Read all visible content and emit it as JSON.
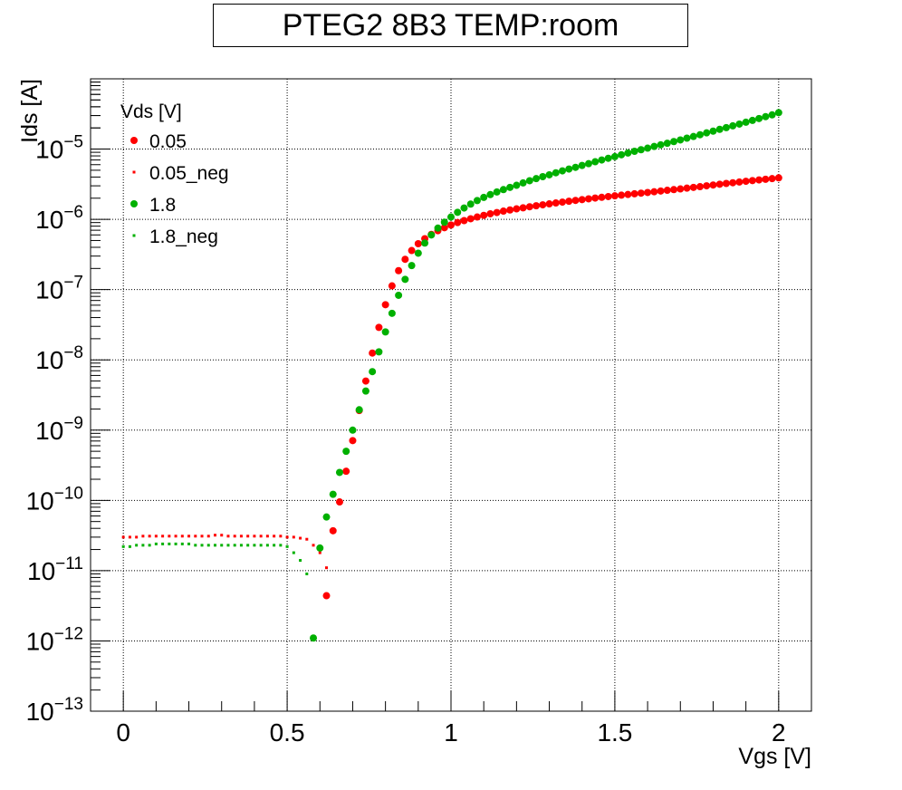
{
  "chart_data": {
    "type": "scatter",
    "title": "PTEG2 8B3 TEMP:room",
    "xlabel": "Vgs [V]",
    "ylabel": "Ids [A]",
    "xlim": [
      -0.1,
      2.1
    ],
    "ylim": [
      1e-13,
      0.0001
    ],
    "yscale": "log",
    "grid": true,
    "legend_position": "top-left",
    "legend_title": "Vds [V]",
    "x_ticks": [
      "0",
      "0.5",
      "1",
      "1.5",
      "2"
    ],
    "y_ticks": [
      {
        "base": "10",
        "exp": "−13"
      },
      {
        "base": "10",
        "exp": "−12"
      },
      {
        "base": "10",
        "exp": "−11"
      },
      {
        "base": "10",
        "exp": "−10"
      },
      {
        "base": "10",
        "exp": "−9"
      },
      {
        "base": "10",
        "exp": "−8"
      },
      {
        "base": "10",
        "exp": "−7"
      },
      {
        "base": "10",
        "exp": "−6"
      },
      {
        "base": "10",
        "exp": "−5"
      }
    ],
    "series": [
      {
        "name": "0.05",
        "color": "#ff0000",
        "marker": "large-dot",
        "x": [
          0.62,
          0.64,
          0.66,
          0.68,
          0.7,
          0.72,
          0.74,
          0.76,
          0.78,
          0.8,
          0.82,
          0.84,
          0.86,
          0.88,
          0.9,
          0.92,
          0.94,
          0.96,
          0.98,
          1.0,
          1.02,
          1.04,
          1.06,
          1.08,
          1.1,
          1.12,
          1.14,
          1.16,
          1.18,
          1.2,
          1.22,
          1.24,
          1.26,
          1.28,
          1.3,
          1.32,
          1.34,
          1.36,
          1.38,
          1.4,
          1.42,
          1.44,
          1.46,
          1.48,
          1.5,
          1.52,
          1.54,
          1.56,
          1.58,
          1.6,
          1.62,
          1.64,
          1.66,
          1.68,
          1.7,
          1.72,
          1.74,
          1.76,
          1.78,
          1.8,
          1.82,
          1.84,
          1.86,
          1.88,
          1.9,
          1.92,
          1.94,
          1.96,
          1.98,
          2.0
        ],
        "y": [
          4.4e-12,
          3.7e-11,
          9.5e-11,
          2.6e-10,
          7.1e-10,
          1.9e-09,
          5e-09,
          1.25e-08,
          2.9e-08,
          6.1e-08,
          1.13e-07,
          1.86e-07,
          2.7e-07,
          3.6e-07,
          4.5e-07,
          5.3e-07,
          6.1e-07,
          6.9e-07,
          7.6e-07,
          8.3e-07,
          9e-07,
          9.6e-07,
          1.02e-06,
          1.08e-06,
          1.14e-06,
          1.2e-06,
          1.25e-06,
          1.31e-06,
          1.36e-06,
          1.41e-06,
          1.46e-06,
          1.51e-06,
          1.56e-06,
          1.61e-06,
          1.66e-06,
          1.71e-06,
          1.76e-06,
          1.81e-06,
          1.86e-06,
          1.91e-06,
          1.96e-06,
          2.01e-06,
          2.06e-06,
          2.11e-06,
          2.16e-06,
          2.21e-06,
          2.26e-06,
          2.31e-06,
          2.36e-06,
          2.41e-06,
          2.47e-06,
          2.53e-06,
          2.59e-06,
          2.65e-06,
          2.71e-06,
          2.78e-06,
          2.85e-06,
          2.92e-06,
          3e-06,
          3.08e-06,
          3.16e-06,
          3.24e-06,
          3.32e-06,
          3.4e-06,
          3.48e-06,
          3.56e-06,
          3.64e-06,
          3.72e-06,
          3.8e-06,
          3.9e-06
        ]
      },
      {
        "name": "0.05_neg",
        "color": "#ff0000",
        "marker": "small-dot",
        "x": [
          0.0,
          0.02,
          0.04,
          0.06,
          0.08,
          0.1,
          0.12,
          0.14,
          0.16,
          0.18,
          0.2,
          0.22,
          0.24,
          0.26,
          0.28,
          0.3,
          0.32,
          0.34,
          0.36,
          0.38,
          0.4,
          0.42,
          0.44,
          0.46,
          0.48,
          0.5,
          0.52,
          0.54,
          0.56,
          0.58,
          0.6,
          0.62
        ],
        "y": [
          3e-11,
          3e-11,
          3e-11,
          3.1e-11,
          3.1e-11,
          3.1e-11,
          3.1e-11,
          3.1e-11,
          3.1e-11,
          3.1e-11,
          3.1e-11,
          3.1e-11,
          3.1e-11,
          3.1e-11,
          3.2e-11,
          3.2e-11,
          3.1e-11,
          3.1e-11,
          3.1e-11,
          3.1e-11,
          3.1e-11,
          3.1e-11,
          3.1e-11,
          3.1e-11,
          3.1e-11,
          3e-11,
          3e-11,
          2.9e-11,
          2.8e-11,
          2.3e-11,
          1.8e-11,
          1.1e-11
        ]
      },
      {
        "name": "1.8",
        "color": "#00b000",
        "marker": "large-dot",
        "x": [
          0.58,
          0.6,
          0.62,
          0.64,
          0.66,
          0.68,
          0.7,
          0.72,
          0.74,
          0.76,
          0.78,
          0.8,
          0.82,
          0.84,
          0.86,
          0.88,
          0.9,
          0.92,
          0.94,
          0.96,
          0.98,
          1.0,
          1.02,
          1.04,
          1.06,
          1.08,
          1.1,
          1.12,
          1.14,
          1.16,
          1.18,
          1.2,
          1.22,
          1.24,
          1.26,
          1.28,
          1.3,
          1.32,
          1.34,
          1.36,
          1.38,
          1.4,
          1.42,
          1.44,
          1.46,
          1.48,
          1.5,
          1.52,
          1.54,
          1.56,
          1.58,
          1.6,
          1.62,
          1.64,
          1.66,
          1.68,
          1.7,
          1.72,
          1.74,
          1.76,
          1.78,
          1.8,
          1.82,
          1.84,
          1.86,
          1.88,
          1.9,
          1.92,
          1.94,
          1.96,
          1.98,
          2.0
        ],
        "y": [
          1.1e-12,
          2.1e-11,
          5.8e-11,
          1.22e-10,
          2.5e-10,
          5e-10,
          1e-09,
          1.95e-09,
          3.6e-09,
          6.8e-09,
          1.3e-08,
          2.5e-08,
          4.6e-08,
          8.3e-08,
          1.4e-07,
          2.2e-07,
          3.3e-07,
          4.6e-07,
          6e-07,
          7.5e-07,
          9.1e-07,
          1.08e-06,
          1.26e-06,
          1.45e-06,
          1.65e-06,
          1.85e-06,
          2.05e-06,
          2.25e-06,
          2.45e-06,
          2.65e-06,
          2.85e-06,
          3.05e-06,
          3.3e-06,
          3.55e-06,
          3.8e-06,
          4.05e-06,
          4.3e-06,
          4.6e-06,
          4.9e-06,
          5.2e-06,
          5.5e-06,
          5.85e-06,
          6.2e-06,
          6.6e-06,
          7e-06,
          7.4e-06,
          7.8e-06,
          8.3e-06,
          8.8e-06,
          9.3e-06,
          9.8e-06,
          1.03e-05,
          1.09e-05,
          1.15e-05,
          1.21e-05,
          1.28e-05,
          1.35e-05,
          1.43e-05,
          1.51e-05,
          1.6e-05,
          1.7e-05,
          1.8e-05,
          1.91e-05,
          2.02e-05,
          2.14e-05,
          2.27e-05,
          2.41e-05,
          2.56e-05,
          2.72e-05,
          2.89e-05,
          3.07e-05,
          3.3e-05
        ]
      },
      {
        "name": "1.8_neg",
        "color": "#00b000",
        "marker": "small-dot",
        "x": [
          0.0,
          0.02,
          0.04,
          0.06,
          0.08,
          0.1,
          0.12,
          0.14,
          0.16,
          0.18,
          0.2,
          0.22,
          0.24,
          0.26,
          0.28,
          0.3,
          0.32,
          0.34,
          0.36,
          0.38,
          0.4,
          0.42,
          0.44,
          0.46,
          0.48,
          0.5,
          0.52,
          0.54,
          0.56
        ],
        "y": [
          2.2e-11,
          2.2e-11,
          2.3e-11,
          2.3e-11,
          2.3e-11,
          2.4e-11,
          2.4e-11,
          2.4e-11,
          2.4e-11,
          2.4e-11,
          2.4e-11,
          2.3e-11,
          2.3e-11,
          2.3e-11,
          2.3e-11,
          2.3e-11,
          2.3e-11,
          2.3e-11,
          2.3e-11,
          2.3e-11,
          2.3e-11,
          2.3e-11,
          2.3e-11,
          2.3e-11,
          2.3e-11,
          2.2e-11,
          1.8e-11,
          1.4e-11,
          9e-12
        ]
      }
    ]
  }
}
